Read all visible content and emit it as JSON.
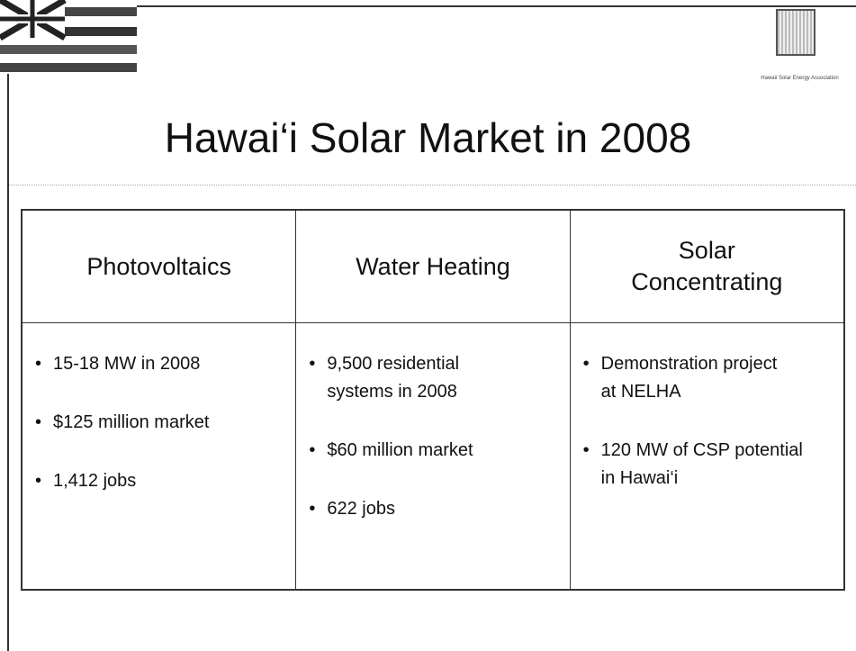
{
  "header": {
    "title": "Hawai‘i Solar Market in 2008",
    "logo_text": "Hawaii Solar Energy Association"
  },
  "table": {
    "columns": [
      {
        "heading": [
          "Photovoltaics"
        ],
        "bullets": [
          [
            "15-18 MW in 2008"
          ],
          [
            "$125 million market"
          ],
          [
            "1,412 jobs"
          ]
        ]
      },
      {
        "heading": [
          "Water Heating"
        ],
        "bullets": [
          [
            "9,500 residential",
            "systems in 2008"
          ],
          [
            "$60 million market"
          ],
          [
            "622 jobs"
          ]
        ]
      },
      {
        "heading": [
          "Solar",
          "Concentrating"
        ],
        "bullets": [
          [
            "Demonstration project",
            "at NELHA"
          ],
          [
            "120 MW of CSP potential",
            "in Hawai‘i"
          ]
        ]
      }
    ]
  }
}
